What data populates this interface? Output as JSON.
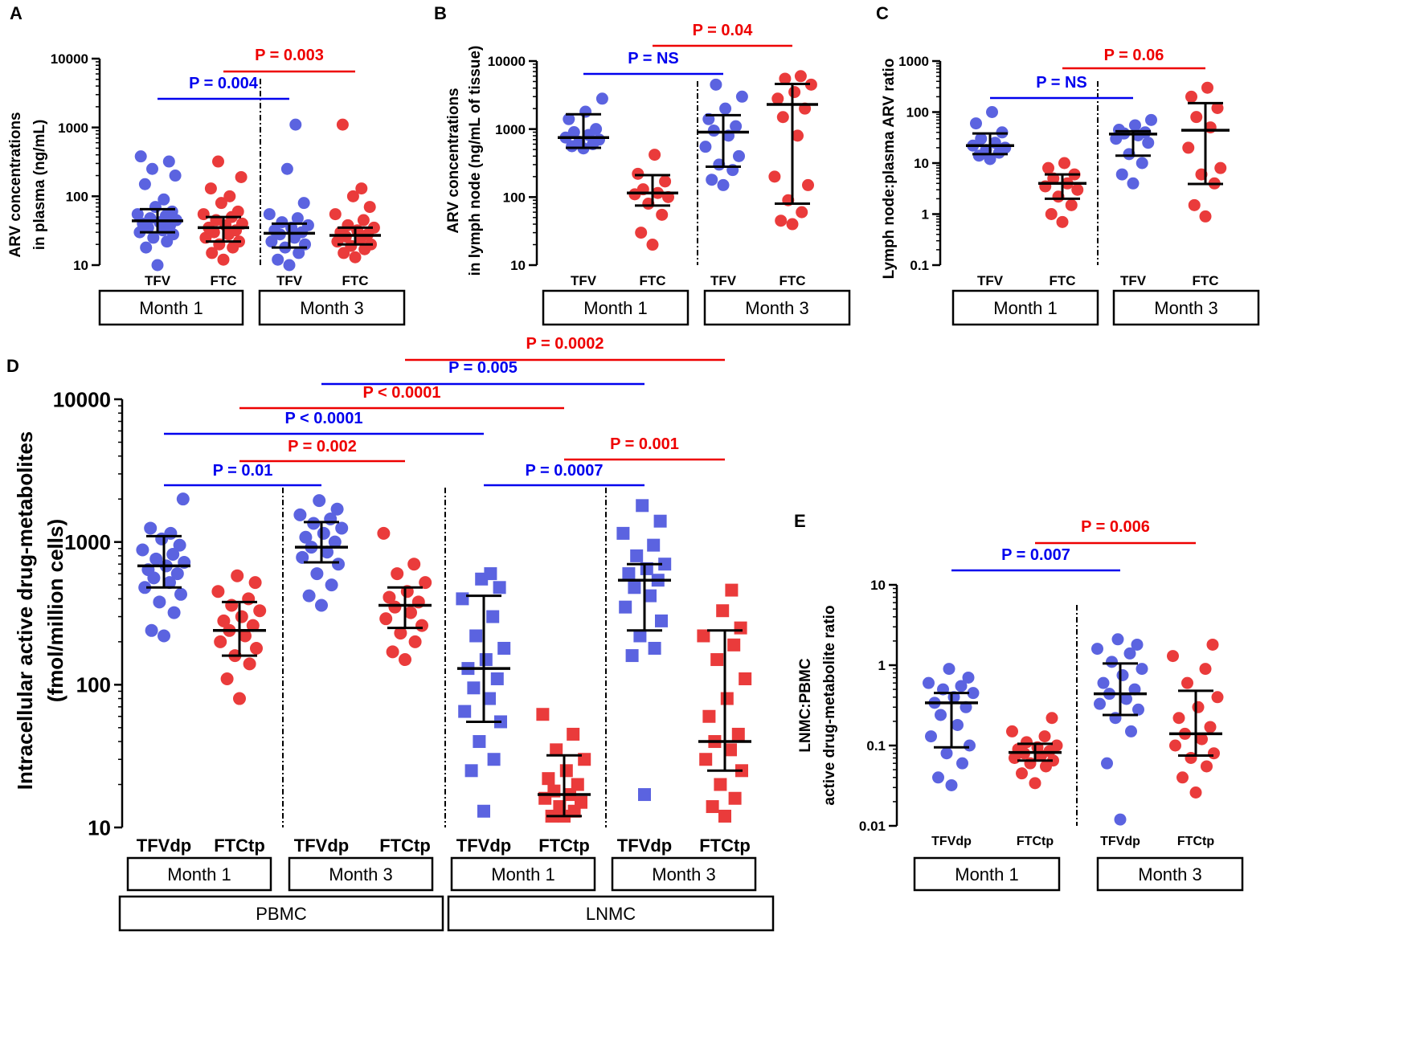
{
  "colors": {
    "blue": "#0000ee",
    "red": "#ee0000",
    "blue_dot": "#5b63e0",
    "red_dot": "#ea3b3b",
    "black": "#000000"
  },
  "chart_data": [
    {
      "panel": "A",
      "type": "scatter",
      "scale": "log",
      "ylabel_lines": [
        "ARV concentrations",
        "in plasma (ng/mL)"
      ],
      "ylim": [
        10,
        10000
      ],
      "yticks": [
        "10",
        "100",
        "1000",
        "10000"
      ],
      "xticks": [
        "TFV",
        "FTC",
        "TFV",
        "FTC"
      ],
      "groups": [
        "Month 1",
        "Month 3"
      ],
      "series": [
        {
          "color": "blue",
          "median": 44,
          "q1": 30,
          "q3": 65,
          "values": [
            10,
            18,
            22,
            25,
            28,
            30,
            32,
            35,
            38,
            40,
            42,
            45,
            48,
            52,
            55,
            60,
            70,
            90,
            150,
            200,
            250,
            320,
            380
          ]
        },
        {
          "color": "red",
          "median": 35,
          "q1": 22,
          "q3": 50,
          "values": [
            12,
            15,
            18,
            20,
            22,
            25,
            28,
            30,
            32,
            35,
            38,
            40,
            45,
            50,
            55,
            60,
            80,
            100,
            130,
            190,
            320
          ]
        },
        {
          "color": "blue",
          "median": 29,
          "q1": 18,
          "q3": 40,
          "values": [
            10,
            12,
            15,
            18,
            20,
            22,
            25,
            28,
            30,
            32,
            35,
            38,
            42,
            48,
            55,
            80,
            250,
            1100
          ]
        },
        {
          "color": "red",
          "median": 27,
          "q1": 20,
          "q3": 35,
          "values": [
            13,
            15,
            17,
            19,
            20,
            22,
            24,
            26,
            28,
            30,
            32,
            35,
            38,
            45,
            55,
            70,
            100,
            130,
            1100
          ]
        }
      ],
      "comparisons": [
        {
          "label": "P = 0.004",
          "from": 0,
          "to": 2,
          "color": "blue"
        },
        {
          "label": "P = 0.003",
          "from": 1,
          "to": 3,
          "color": "red"
        }
      ]
    },
    {
      "panel": "B",
      "type": "scatter",
      "scale": "log",
      "ylabel_lines": [
        "ARV concentrations",
        "in lymph node (ng/mL of tissue)"
      ],
      "ylim": [
        10,
        10000
      ],
      "yticks": [
        "10",
        "100",
        "1000",
        "10000"
      ],
      "xticks": [
        "TFV",
        "FTC",
        "TFV",
        "FTC"
      ],
      "groups": [
        "Month 1",
        "Month 3"
      ],
      "series": [
        {
          "color": "blue",
          "median": 750,
          "q1": 530,
          "q3": 1650,
          "values": [
            520,
            560,
            600,
            650,
            700,
            750,
            820,
            900,
            1000,
            1400,
            1800,
            2800
          ]
        },
        {
          "color": "red",
          "median": 115,
          "q1": 75,
          "q3": 210,
          "values": [
            20,
            30,
            55,
            80,
            100,
            110,
            115,
            130,
            170,
            220,
            420
          ]
        },
        {
          "color": "blue",
          "median": 900,
          "q1": 280,
          "q3": 1600,
          "values": [
            150,
            180,
            250,
            300,
            400,
            550,
            800,
            950,
            1100,
            1400,
            2000,
            3000,
            4500
          ]
        },
        {
          "color": "red",
          "median": 2300,
          "q1": 80,
          "q3": 4600,
          "values": [
            40,
            45,
            60,
            90,
            150,
            200,
            800,
            1500,
            2000,
            2800,
            3500,
            4500,
            5500,
            6000
          ]
        }
      ],
      "comparisons": [
        {
          "label": "P = NS",
          "from": 0,
          "to": 2,
          "color": "blue"
        },
        {
          "label": "P = 0.04",
          "from": 1,
          "to": 3,
          "color": "red"
        }
      ]
    },
    {
      "panel": "C",
      "type": "scatter",
      "scale": "log",
      "ylabel_lines": [
        "Lymph node:plasma ARV ratio"
      ],
      "ylim": [
        0.1,
        1000
      ],
      "yticks": [
        "0.1",
        "1",
        "10",
        "100",
        "1000"
      ],
      "xticks": [
        "TFV",
        "FTC",
        "TFV",
        "FTC"
      ],
      "groups": [
        "Month 1",
        "Month 3"
      ],
      "series": [
        {
          "color": "blue",
          "median": 22,
          "q1": 15,
          "q3": 38,
          "values": [
            12,
            14,
            16,
            18,
            20,
            22,
            25,
            30,
            40,
            60,
            100
          ]
        },
        {
          "color": "red",
          "median": 4,
          "q1": 2,
          "q3": 6,
          "values": [
            0.7,
            1,
            1.5,
            2.2,
            3,
            3.5,
            4,
            5,
            6,
            8,
            10
          ]
        },
        {
          "color": "blue",
          "median": 37,
          "q1": 14,
          "q3": 42,
          "values": [
            4,
            6,
            10,
            15,
            25,
            30,
            35,
            38,
            40,
            45,
            55,
            70
          ]
        },
        {
          "color": "red",
          "median": 44,
          "q1": 3.9,
          "q3": 150,
          "values": [
            0.9,
            1.5,
            4,
            6,
            8,
            20,
            50,
            80,
            120,
            200,
            300
          ]
        }
      ],
      "comparisons": [
        {
          "label": "P = NS",
          "from": 0,
          "to": 2,
          "color": "blue"
        },
        {
          "label": "P = 0.06",
          "from": 1,
          "to": 3,
          "color": "red",
          "italic": "0.06"
        }
      ]
    },
    {
      "panel": "D",
      "type": "scatter",
      "scale": "log",
      "ylabel_lines": [
        "Intracellular active drug-metabolites",
        "(fmol/million cells)"
      ],
      "ylim": [
        10,
        10000
      ],
      "yticks": [
        "10",
        "100",
        "1000",
        "10000"
      ],
      "xticks": [
        "TFVdp",
        "FTCtp",
        "TFVdp",
        "FTCtp",
        "TFVdp",
        "FTCtp",
        "TFVdp",
        "FTCtp"
      ],
      "groups": [
        "Month 1",
        "Month 3",
        "Month 1",
        "Month 3"
      ],
      "supergroups": [
        "PBMC",
        "LNMC"
      ],
      "series": [
        {
          "color": "blue",
          "marker": "circle",
          "median": 680,
          "q1": 480,
          "q3": 1100,
          "values": [
            220,
            240,
            320,
            380,
            430,
            480,
            520,
            560,
            600,
            640,
            680,
            720,
            760,
            820,
            880,
            950,
            1050,
            1150,
            1250,
            2000
          ]
        },
        {
          "color": "red",
          "marker": "circle",
          "median": 240,
          "q1": 160,
          "q3": 380,
          "values": [
            80,
            110,
            140,
            160,
            180,
            200,
            220,
            240,
            260,
            280,
            300,
            330,
            360,
            400,
            450,
            520,
            580
          ]
        },
        {
          "color": "blue",
          "marker": "circle",
          "median": 920,
          "q1": 720,
          "q3": 1380,
          "values": [
            360,
            420,
            500,
            600,
            700,
            780,
            850,
            920,
            1000,
            1080,
            1150,
            1250,
            1350,
            1450,
            1550,
            1700,
            1950
          ]
        },
        {
          "color": "red",
          "marker": "circle",
          "median": 360,
          "q1": 250,
          "q3": 480,
          "values": [
            150,
            170,
            200,
            230,
            260,
            290,
            320,
            350,
            380,
            410,
            450,
            520,
            600,
            700,
            1150
          ]
        },
        {
          "color": "blue",
          "marker": "square",
          "median": 130,
          "q1": 55,
          "q3": 420,
          "values": [
            13,
            25,
            30,
            40,
            55,
            65,
            80,
            95,
            110,
            130,
            150,
            180,
            220,
            300,
            400,
            480,
            550,
            600
          ]
        },
        {
          "color": "red",
          "marker": "square",
          "median": 17,
          "q1": 12,
          "q3": 32,
          "values": [
            12,
            12,
            13,
            14,
            15,
            16,
            17,
            18,
            20,
            22,
            25,
            30,
            35,
            45,
            62
          ]
        },
        {
          "color": "blue",
          "marker": "square",
          "median": 540,
          "q1": 240,
          "q3": 700,
          "values": [
            17,
            160,
            180,
            220,
            280,
            350,
            420,
            480,
            540,
            600,
            650,
            700,
            800,
            950,
            1150,
            1400,
            1800
          ]
        },
        {
          "color": "red",
          "marker": "square",
          "median": 40,
          "q1": 25,
          "q3": 240,
          "values": [
            12,
            14,
            16,
            20,
            25,
            30,
            35,
            40,
            45,
            60,
            80,
            110,
            150,
            190,
            220,
            250,
            330,
            460
          ]
        }
      ],
      "comparisons": [
        {
          "label": "P = 0.01",
          "from": 0,
          "to": 2,
          "color": "blue"
        },
        {
          "label": "P = 0.002",
          "from": 1,
          "to": 3,
          "color": "red"
        },
        {
          "label": "P = 0.0007",
          "from": 4,
          "to": 6,
          "color": "blue"
        },
        {
          "label": "P = 0.001",
          "from": 5,
          "to": 7,
          "color": "red"
        },
        {
          "label": "P < 0.0001",
          "from": 0,
          "to": 4,
          "color": "blue"
        },
        {
          "label": "P < 0.0001",
          "from": 1,
          "to": 5,
          "color": "red"
        },
        {
          "label": "P = 0.005",
          "from": 2,
          "to": 6,
          "color": "blue"
        },
        {
          "label": "P = 0.0002",
          "from": 3,
          "to": 7,
          "color": "red"
        }
      ]
    },
    {
      "panel": "E",
      "type": "scatter",
      "scale": "log",
      "ylabel_lines": [
        "LNMC:PBMC",
        "active drug-metabolite ratio"
      ],
      "ylim": [
        0.01,
        10
      ],
      "yticks": [
        "0.01",
        "0.1",
        "1",
        "10"
      ],
      "xticks": [
        "TFVdp",
        "FTCtp",
        "TFVdp",
        "FTCtp"
      ],
      "groups": [
        "Month 1",
        "Month 3"
      ],
      "series": [
        {
          "color": "blue",
          "median": 0.34,
          "q1": 0.095,
          "q3": 0.45,
          "values": [
            0.032,
            0.04,
            0.06,
            0.08,
            0.1,
            0.13,
            0.18,
            0.24,
            0.3,
            0.34,
            0.4,
            0.45,
            0.5,
            0.55,
            0.6,
            0.7,
            0.9
          ]
        },
        {
          "color": "red",
          "median": 0.082,
          "q1": 0.065,
          "q3": 0.105,
          "values": [
            0.034,
            0.045,
            0.055,
            0.06,
            0.065,
            0.07,
            0.075,
            0.08,
            0.085,
            0.09,
            0.095,
            0.1,
            0.11,
            0.13,
            0.15,
            0.22
          ]
        },
        {
          "color": "blue",
          "median": 0.44,
          "q1": 0.24,
          "q3": 1.05,
          "values": [
            0.012,
            0.06,
            0.15,
            0.22,
            0.28,
            0.33,
            0.38,
            0.44,
            0.5,
            0.6,
            0.75,
            0.9,
            1.1,
            1.4,
            1.6,
            1.8,
            2.1
          ]
        },
        {
          "color": "red",
          "median": 0.14,
          "q1": 0.075,
          "q3": 0.48,
          "values": [
            0.026,
            0.04,
            0.055,
            0.07,
            0.08,
            0.1,
            0.12,
            0.14,
            0.17,
            0.22,
            0.3,
            0.4,
            0.6,
            0.9,
            1.3,
            1.8
          ]
        }
      ],
      "comparisons": [
        {
          "label": "P = 0.007",
          "from": 0,
          "to": 2,
          "color": "blue"
        },
        {
          "label": "P = 0.006",
          "from": 1,
          "to": 3,
          "color": "red"
        }
      ]
    }
  ]
}
